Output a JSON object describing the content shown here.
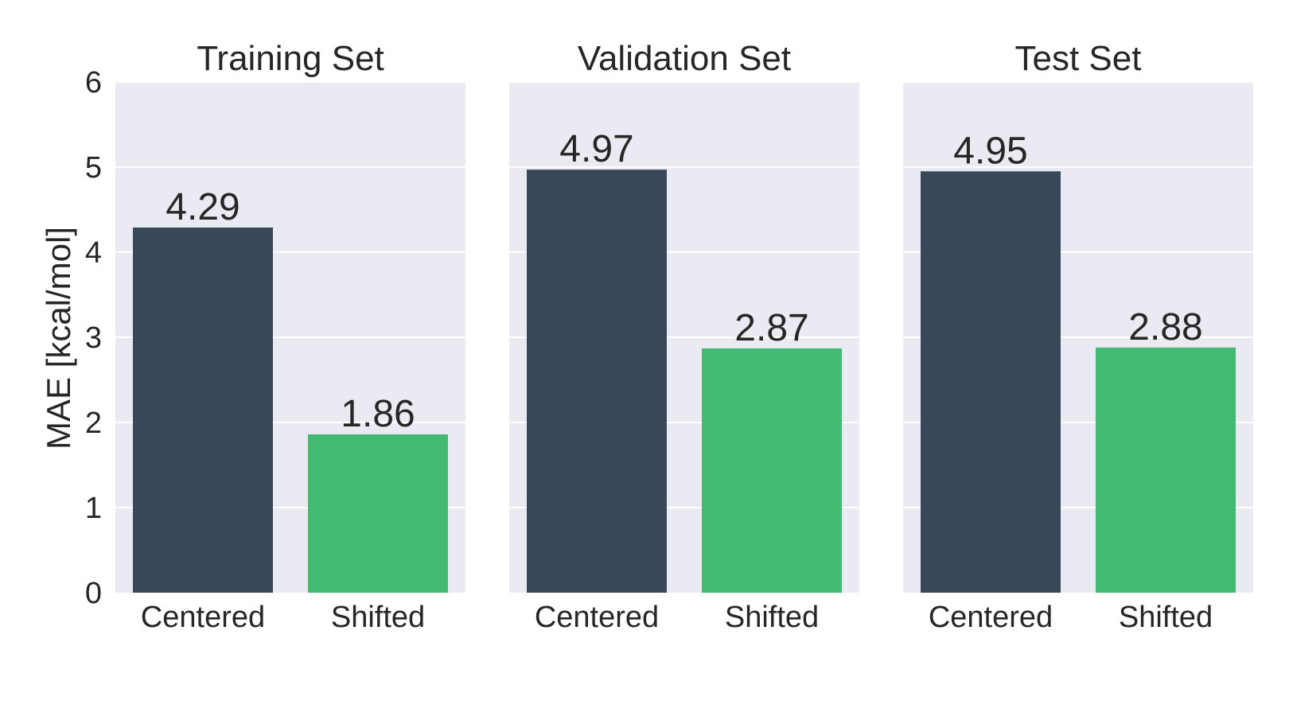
{
  "chart_data": {
    "type": "bar",
    "ylabel": "MAE [kcal/mol]",
    "ylim": [
      0,
      6
    ],
    "yticks": [
      0,
      1,
      2,
      3,
      4,
      5,
      6
    ],
    "grid": true,
    "shared_y": true,
    "categories": [
      "Centered",
      "Shifted"
    ],
    "colors": {
      "Centered": "#394859",
      "Shifted": "#44b974"
    },
    "panels": [
      {
        "title": "Training Set",
        "values": [
          4.29,
          1.86
        ],
        "labels": [
          "4.29",
          "1.86"
        ]
      },
      {
        "title": "Validation Set",
        "values": [
          4.97,
          2.87
        ],
        "labels": [
          "4.97",
          "2.87"
        ]
      },
      {
        "title": "Test Set",
        "values": [
          4.95,
          2.88
        ],
        "labels": [
          "4.95",
          "2.88"
        ]
      }
    ]
  }
}
